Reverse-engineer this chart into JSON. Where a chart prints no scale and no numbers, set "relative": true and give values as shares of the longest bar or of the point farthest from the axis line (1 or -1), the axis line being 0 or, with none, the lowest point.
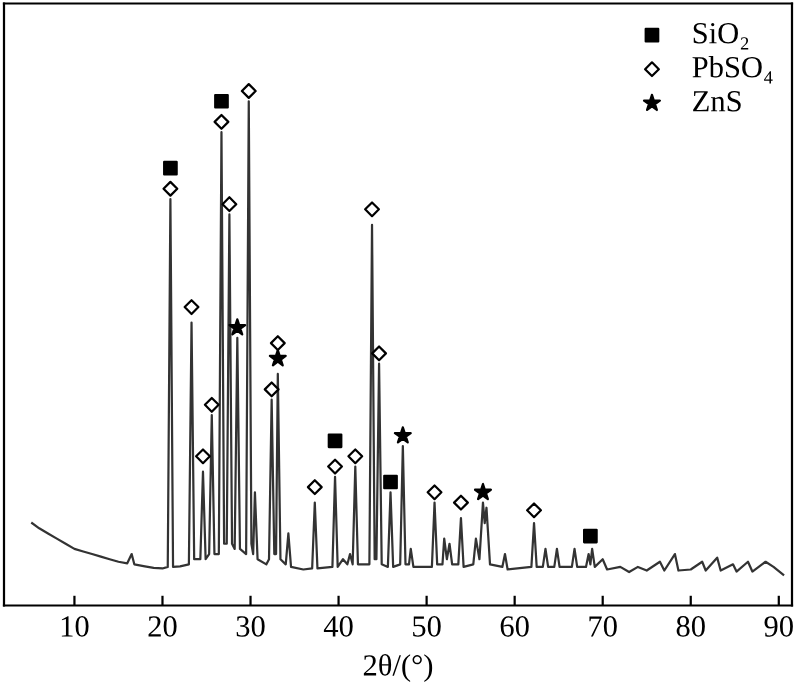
{
  "chart_data": {
    "type": "line",
    "relative": true,
    "xlabel": "2θ/(°)",
    "xlim": [
      2,
      91.5
    ],
    "xticks": [
      10,
      20,
      30,
      40,
      50,
      60,
      70,
      80,
      90
    ],
    "legend": "top right",
    "grid": false,
    "series": [
      {
        "color": "#333333",
        "line_style": "solid",
        "marker": "none",
        "x": [
          5.2,
          6,
          7,
          8,
          9,
          10,
          11,
          12,
          13,
          14,
          15,
          16,
          16.5,
          16.8,
          18,
          19,
          20,
          20.6,
          20.9,
          21.2,
          22,
          23.0,
          23.3,
          23.6,
          24.3,
          24.6,
          24.9,
          25.3,
          25.6,
          25.9,
          26.4,
          26.7,
          27.0,
          27.3,
          27.6,
          27.9,
          28.2,
          28.5,
          28.8,
          29.5,
          29.8,
          30.1,
          30.3,
          30.5,
          30.8,
          31.8,
          32.1,
          32.4,
          32.7,
          32.9,
          33.1,
          33.4,
          34.0,
          34.3,
          34.6,
          36,
          37.0,
          37.3,
          37.6,
          39.3,
          39.6,
          39.9,
          40.5,
          41,
          41.3,
          41.6,
          41.9,
          42.2,
          43.5,
          43.8,
          44.1,
          44.3,
          44.6,
          44.9,
          45.6,
          45.9,
          46.2,
          47.0,
          47.3,
          47.6,
          48.0,
          48.2,
          48.5,
          50.6,
          50.9,
          51.2,
          51.8,
          52.0,
          52.3,
          52.6,
          52.9,
          53.6,
          53.9,
          54.2,
          55.3,
          55.6,
          56.0,
          56.4,
          56.6,
          56.8,
          57.2,
          58.6,
          58.9,
          59.2,
          61.9,
          62.2,
          62.5,
          63.2,
          63.5,
          63.8,
          64.5,
          64.8,
          65.1,
          66.5,
          66.8,
          67.1,
          68.1,
          68.4,
          68.6,
          68.8,
          69.1,
          70,
          70.5,
          72,
          73,
          74,
          75,
          76.5,
          77,
          78.2,
          78.6,
          80,
          81.3,
          81.7,
          83,
          83.4,
          84.8,
          85.2,
          86.5,
          87,
          88.5,
          89.4,
          90.5
        ],
        "values": [
          0.16,
          0.15,
          0.14,
          0.13,
          0.12,
          0.11,
          0.105,
          0.1,
          0.095,
          0.09,
          0.085,
          0.082,
          0.1,
          0.08,
          0.076,
          0.073,
          0.072,
          0.075,
          0.79,
          0.075,
          0.076,
          0.08,
          0.55,
          0.09,
          0.09,
          0.26,
          0.09,
          0.1,
          0.37,
          0.1,
          0.1,
          0.92,
          0.12,
          0.12,
          0.76,
          0.12,
          0.11,
          0.52,
          0.11,
          0.1,
          0.98,
          0.12,
          0.1,
          0.22,
          0.09,
          0.08,
          0.09,
          0.4,
          0.1,
          0.1,
          0.45,
          0.09,
          0.08,
          0.14,
          0.075,
          0.07,
          0.072,
          0.2,
          0.072,
          0.075,
          0.25,
          0.075,
          0.09,
          0.08,
          0.1,
          0.08,
          0.27,
          0.08,
          0.08,
          0.74,
          0.09,
          0.09,
          0.47,
          0.08,
          0.075,
          0.22,
          0.075,
          0.08,
          0.31,
          0.08,
          0.08,
          0.11,
          0.075,
          0.075,
          0.2,
          0.08,
          0.08,
          0.13,
          0.09,
          0.12,
          0.08,
          0.08,
          0.17,
          0.075,
          0.08,
          0.13,
          0.09,
          0.2,
          0.16,
          0.19,
          0.08,
          0.075,
          0.1,
          0.07,
          0.075,
          0.16,
          0.075,
          0.075,
          0.11,
          0.075,
          0.075,
          0.11,
          0.075,
          0.075,
          0.11,
          0.075,
          0.075,
          0.1,
          0.08,
          0.11,
          0.075,
          0.09,
          0.07,
          0.075,
          0.065,
          0.075,
          0.068,
          0.085,
          0.068,
          0.1,
          0.068,
          0.07,
          0.085,
          0.068,
          0.093,
          0.068,
          0.08,
          0.066,
          0.085,
          0.066,
          0.085,
          0.075,
          0.06
        ]
      },
      {
        "type": "scatter",
        "name": "SiO₂",
        "color": "#000000",
        "marker": "square",
        "x": [
          20.9,
          26.7,
          39.6,
          45.9,
          68.6
        ],
        "values": [
          0.85,
          0.98,
          0.32,
          0.24,
          0.135
        ]
      },
      {
        "type": "scatter",
        "name": "PbSO₄",
        "color": "#000000",
        "marker": "diamond",
        "x": [
          20.9,
          23.3,
          24.6,
          25.6,
          26.7,
          27.6,
          29.8,
          32.4,
          33.1,
          37.3,
          39.6,
          41.9,
          43.8,
          44.6,
          50.9,
          53.9,
          62.2
        ],
        "values": [
          0.81,
          0.58,
          0.29,
          0.39,
          0.94,
          0.78,
          1.0,
          0.42,
          0.51,
          0.23,
          0.27,
          0.29,
          0.77,
          0.49,
          0.22,
          0.2,
          0.185
        ]
      },
      {
        "type": "scatter",
        "name": "ZnS",
        "color": "#000000",
        "marker": "star",
        "x": [
          28.5,
          33.1,
          47.3,
          56.4
        ],
        "values": [
          0.54,
          0.48,
          0.33,
          0.22
        ]
      }
    ]
  }
}
